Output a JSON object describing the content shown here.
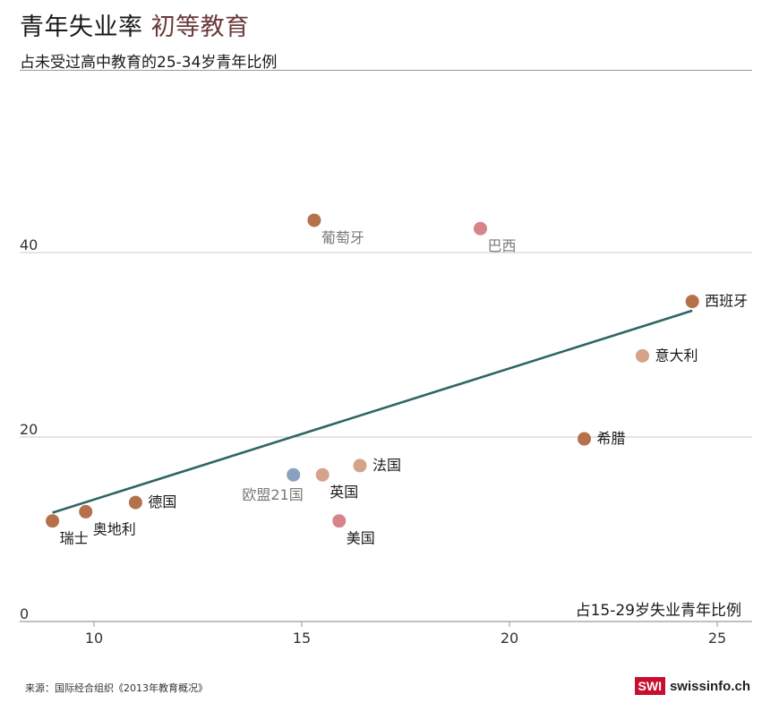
{
  "header": {
    "title_main": "青年失业率",
    "title_accent": "初等教育",
    "subtitle": "占未受过高中教育的25-34岁青年比例"
  },
  "footer": {
    "source": "来源：国际经合组织《2013年教育概况》",
    "brand_box": "SWI",
    "brand_text": "swissinfo.ch"
  },
  "chart_data": {
    "type": "scatter",
    "title": "青年失业率 初等教育",
    "subtitle": "占未受过高中教育的25-34岁青年比例",
    "xlabel": "占15-29岁失业青年比例",
    "ylabel": "",
    "xlim": [
      8.2,
      25.8
    ],
    "ylim": [
      0,
      46
    ],
    "xticks": [
      10,
      15,
      20,
      25
    ],
    "yticks": [
      0,
      20,
      40
    ],
    "grid": "horizontal",
    "points": [
      {
        "label": "瑞士",
        "x": 9.0,
        "y": 10.9,
        "color": "#b5714a",
        "label_pos": "below-right"
      },
      {
        "label": "奥地利",
        "x": 9.8,
        "y": 11.9,
        "color": "#b5714a",
        "label_pos": "below-right"
      },
      {
        "label": "德国",
        "x": 11.0,
        "y": 12.9,
        "color": "#b5714a",
        "label_pos": "right"
      },
      {
        "label": "欧盟21国",
        "x": 14.8,
        "y": 15.9,
        "color": "#8aa0c0",
        "label_pos": "below-left"
      },
      {
        "label": "英国",
        "x": 15.5,
        "y": 15.9,
        "color": "#d4a38a",
        "label_pos": "below-right"
      },
      {
        "label": "法国",
        "x": 16.4,
        "y": 16.9,
        "color": "#d4a38a",
        "label_pos": "right"
      },
      {
        "label": "美国",
        "x": 15.9,
        "y": 10.9,
        "color": "#d6838a",
        "label_pos": "below-right"
      },
      {
        "label": "葡萄牙",
        "x": 15.3,
        "y": 43.5,
        "color": "#b5714a",
        "label_pos": "below-right"
      },
      {
        "label": "巴西",
        "x": 19.3,
        "y": 42.6,
        "color": "#d6838a",
        "label_pos": "below-right"
      },
      {
        "label": "西班牙",
        "x": 24.4,
        "y": 34.7,
        "color": "#b5714a",
        "label_pos": "right"
      },
      {
        "label": "意大利",
        "x": 23.2,
        "y": 28.8,
        "color": "#d4a38a",
        "label_pos": "right"
      },
      {
        "label": "希腊",
        "x": 21.8,
        "y": 19.8,
        "color": "#b5714a",
        "label_pos": "right"
      }
    ],
    "trendline": {
      "x": [
        9.0,
        24.4
      ],
      "y": [
        11.8,
        33.7
      ],
      "color": "#2f6565"
    },
    "label_colors": {
      "default": "#1a1a1a",
      "muted": "#7a7a7a"
    },
    "muted_labels": [
      "葡萄牙",
      "巴西",
      "欧盟21国"
    ]
  }
}
